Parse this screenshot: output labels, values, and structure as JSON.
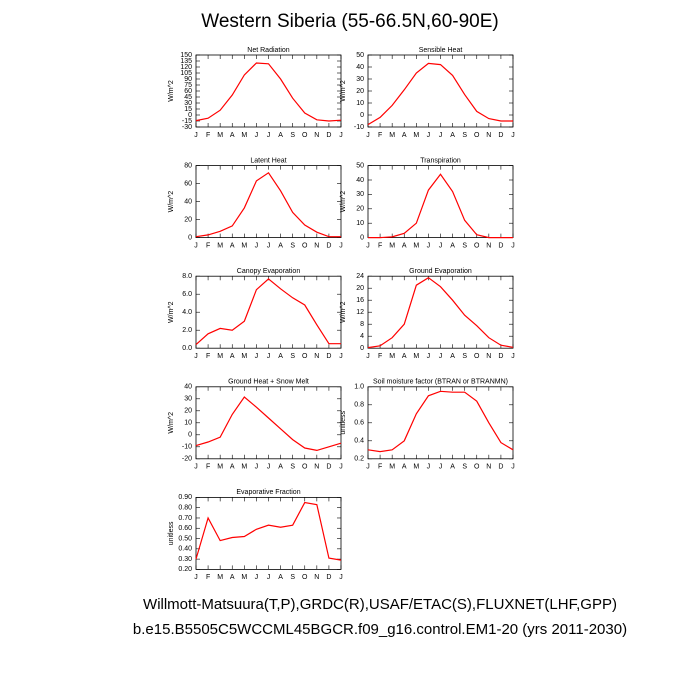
{
  "title": "Western Siberia (55-66.5N,60-90E)",
  "captions": [
    "Willmott-Matsuura(T,P),GRDC(R),USAF/ETAC(S),FLUXNET(LHF,GPP)",
    "b.e15.B5505C5WCCML45BGCR.f09_g16.control.EM1-20 (yrs 2011-2030)"
  ],
  "chart_data": [
    {
      "type": "line",
      "title": "Net Radiation",
      "y_label": "W/m^2",
      "color": "#ff0000",
      "categories": [
        "J",
        "F",
        "M",
        "A",
        "M",
        "J",
        "J",
        "A",
        "S",
        "O",
        "N",
        "D",
        "J"
      ],
      "values": [
        -14,
        -8,
        12,
        50,
        100,
        130,
        128,
        90,
        42,
        5,
        -12,
        -15,
        -13
      ],
      "ylim": [
        -30,
        150
      ],
      "yticks": [
        -30,
        -15,
        0,
        15,
        30,
        45,
        60,
        75,
        90,
        105,
        120,
        135,
        150
      ]
    },
    {
      "type": "line",
      "title": "Sensible Heat",
      "y_label": "W/m^2",
      "color": "#ff0000",
      "categories": [
        "J",
        "F",
        "M",
        "A",
        "M",
        "J",
        "J",
        "A",
        "S",
        "O",
        "N",
        "D",
        "J"
      ],
      "values": [
        -8,
        -2,
        8,
        21,
        35,
        43,
        42,
        33,
        17,
        3,
        -3,
        -5,
        -5
      ],
      "ylim": [
        -10,
        50
      ],
      "yticks": [
        -10,
        0,
        10,
        20,
        30,
        40,
        50
      ]
    },
    {
      "type": "line",
      "title": "Latent Heat",
      "y_label": "W/m^2",
      "color": "#ff0000",
      "categories": [
        "J",
        "F",
        "M",
        "A",
        "M",
        "J",
        "J",
        "A",
        "S",
        "O",
        "N",
        "D",
        "J"
      ],
      "values": [
        1,
        3,
        7,
        13,
        33,
        63,
        72,
        52,
        28,
        14,
        6,
        1,
        1
      ],
      "ylim": [
        0,
        80
      ],
      "yticks": [
        0,
        20,
        40,
        60,
        80
      ]
    },
    {
      "type": "line",
      "title": "Transpiration",
      "y_label": "W/m^2",
      "color": "#ff0000",
      "categories": [
        "J",
        "F",
        "M",
        "A",
        "M",
        "J",
        "J",
        "A",
        "S",
        "O",
        "N",
        "D",
        "J"
      ],
      "values": [
        0,
        0,
        0.5,
        3,
        10,
        33,
        44,
        32,
        12,
        2,
        0,
        0,
        0
      ],
      "ylim": [
        0,
        50
      ],
      "yticks": [
        0,
        10,
        20,
        30,
        40,
        50
      ]
    },
    {
      "type": "line",
      "title": "Canopy Evaporation",
      "y_label": "W/m^2",
      "color": "#ff0000",
      "categories": [
        "J",
        "F",
        "M",
        "A",
        "M",
        "J",
        "J",
        "A",
        "S",
        "O",
        "N",
        "D",
        "J"
      ],
      "values": [
        0.4,
        1.6,
        2.2,
        2.0,
        3.0,
        6.5,
        7.7,
        6.6,
        5.6,
        4.8,
        2.6,
        0.5,
        0.5
      ],
      "ylim": [
        0,
        8
      ],
      "yticks": [
        {
          "value": 0,
          "label": "0.0"
        },
        {
          "value": 2,
          "label": "2.0"
        },
        {
          "value": 4,
          "label": "4.0"
        },
        {
          "value": 6,
          "label": "6.0"
        },
        {
          "value": 8,
          "label": "8.0"
        }
      ]
    },
    {
      "type": "line",
      "title": "Ground Evaporation",
      "y_label": "W/m^2",
      "color": "#ff0000",
      "categories": [
        "J",
        "F",
        "M",
        "A",
        "M",
        "J",
        "J",
        "A",
        "S",
        "O",
        "N",
        "D",
        "J"
      ],
      "values": [
        0.2,
        0.8,
        3.5,
        8,
        21,
        23.5,
        20.5,
        16,
        11,
        7.5,
        3.5,
        1,
        0.3
      ],
      "ylim": [
        0,
        24
      ],
      "yticks": [
        0,
        4,
        8,
        12,
        16,
        20,
        24
      ]
    },
    {
      "type": "line",
      "title": "Ground Heat + Snow Melt",
      "y_label": "W/m^2",
      "color": "#ff0000",
      "categories": [
        "J",
        "F",
        "M",
        "A",
        "M",
        "J",
        "J",
        "A",
        "S",
        "O",
        "N",
        "D",
        "J"
      ],
      "values": [
        -9,
        -6,
        -2,
        17,
        31.5,
        23,
        14,
        5,
        -4,
        -11,
        -13,
        -10,
        -7
      ],
      "ylim": [
        -20,
        40
      ],
      "yticks": [
        -20,
        -10,
        0,
        10,
        20,
        30,
        40
      ]
    },
    {
      "type": "line",
      "title": "Soil moisture factor (BTRAN or BTRANMN)",
      "y_label": "unitless",
      "color": "#ff0000",
      "categories": [
        "J",
        "F",
        "M",
        "A",
        "M",
        "J",
        "J",
        "A",
        "S",
        "O",
        "N",
        "D",
        "J"
      ],
      "values": [
        0.3,
        0.28,
        0.3,
        0.4,
        0.7,
        0.9,
        0.95,
        0.94,
        0.94,
        0.84,
        0.6,
        0.38,
        0.3
      ],
      "ylim": [
        0.2,
        1.0
      ],
      "yticks": [
        0.2,
        0.4,
        0.6,
        0.8,
        {
          "value": 1.0,
          "label": "1.0"
        }
      ]
    },
    {
      "type": "line",
      "title": "Evaporative Fraction",
      "y_label": "unitless",
      "color": "#ff0000",
      "categories": [
        "J",
        "F",
        "M",
        "A",
        "M",
        "J",
        "J",
        "A",
        "S",
        "O",
        "N",
        "D",
        "J"
      ],
      "values": [
        0.3,
        0.7,
        0.48,
        0.51,
        0.52,
        0.59,
        0.63,
        0.61,
        0.63,
        0.85,
        0.83,
        0.31,
        0.29
      ],
      "ylim": [
        0.2,
        0.9
      ],
      "yticks": [
        {
          "value": 0.2,
          "label": "0.20"
        },
        {
          "value": 0.3,
          "label": "0.30"
        },
        {
          "value": 0.4,
          "label": "0.40"
        },
        {
          "value": 0.5,
          "label": "0.50"
        },
        {
          "value": 0.6,
          "label": "0.60"
        },
        {
          "value": 0.7,
          "label": "0.70"
        },
        {
          "value": 0.8,
          "label": "0.80"
        },
        {
          "value": 0.9,
          "label": "0.90"
        }
      ]
    }
  ]
}
